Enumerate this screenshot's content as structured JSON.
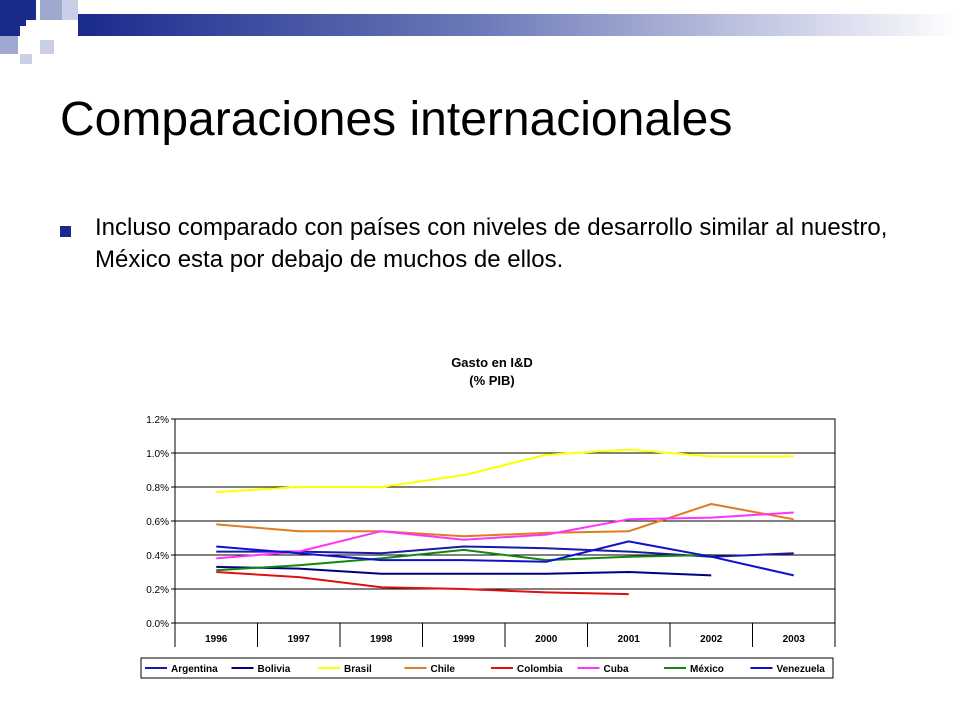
{
  "slide": {
    "title": "Comparaciones internacionales",
    "bullet": "Incluso comparado con países con niveles de desarrollo similar al nuestro, México esta por debajo de muchos de ellos.",
    "accent_color": "#1a2a8c"
  },
  "chart_data": {
    "type": "line",
    "title": "Gasto en I&D",
    "subtitle": "(% PIB)",
    "categories": [
      "1996",
      "1997",
      "1998",
      "1999",
      "2000",
      "2001",
      "2002",
      "2003"
    ],
    "ylim": [
      0,
      1.2
    ],
    "y_ticks": [
      0,
      0.2,
      0.4,
      0.6,
      0.8,
      1.0,
      1.2
    ],
    "y_tick_labels": [
      "0.0%",
      "0.2%",
      "0.4%",
      "0.6%",
      "0.8%",
      "1.0%",
      "1.2%"
    ],
    "grid": true,
    "legend_position": "bottom",
    "series": [
      {
        "name": "Argentina",
        "color": "#1a1aa8",
        "values": [
          0.42,
          0.42,
          0.41,
          0.45,
          0.44,
          0.42,
          0.39,
          0.41
        ]
      },
      {
        "name": "Bolivia",
        "color": "#000080",
        "values": [
          0.33,
          0.32,
          0.29,
          0.29,
          0.29,
          0.3,
          0.28,
          null
        ]
      },
      {
        "name": "Brasil",
        "color": "#ffff00",
        "values": [
          0.77,
          0.8,
          0.8,
          0.87,
          0.99,
          1.02,
          0.98,
          0.98
        ]
      },
      {
        "name": "Chile",
        "color": "#e07b20",
        "values": [
          0.58,
          0.54,
          0.54,
          0.51,
          0.53,
          0.54,
          0.7,
          0.61
        ]
      },
      {
        "name": "Colombia",
        "color": "#dd1111",
        "values": [
          0.3,
          0.27,
          0.21,
          0.2,
          0.18,
          0.17,
          null,
          null
        ]
      },
      {
        "name": "Cuba",
        "color": "#ff33ff",
        "values": [
          0.38,
          0.42,
          0.54,
          0.49,
          0.52,
          0.61,
          0.62,
          0.65
        ]
      },
      {
        "name": "México",
        "color": "#118811",
        "values": [
          0.31,
          0.34,
          0.38,
          0.43,
          0.37,
          0.39,
          0.4,
          null
        ]
      },
      {
        "name": "Venezuela",
        "color": "#1111cc",
        "values": [
          0.45,
          0.41,
          0.37,
          0.37,
          0.36,
          0.48,
          0.39,
          0.28
        ]
      }
    ]
  }
}
